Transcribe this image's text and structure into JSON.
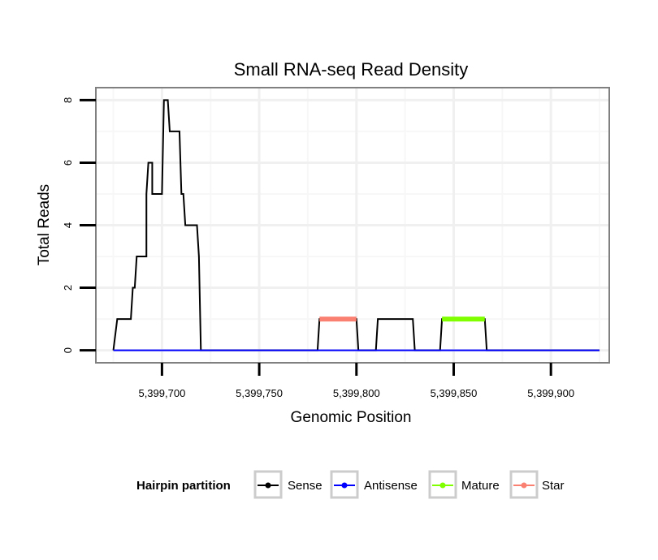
{
  "chart_data": {
    "type": "line",
    "title": "Small RNA-seq Read Density",
    "xlabel": "Genomic Position",
    "ylabel": "Total Reads",
    "xlim": [
      5399666,
      5399930
    ],
    "ylim": [
      -0.4,
      8.4
    ],
    "x_ticks": [
      5399700,
      5399750,
      5399800,
      5399850,
      5399900
    ],
    "x_tick_labels": [
      "5,399,700",
      "5,399,750",
      "5,399,800",
      "5,399,850",
      "5,399,900"
    ],
    "y_ticks": [
      0,
      2,
      4,
      6,
      8
    ],
    "y_tick_labels": [
      "0",
      "2",
      "4",
      "6",
      "8"
    ],
    "grid": true,
    "series": [
      {
        "name": "Sense",
        "color": "#000000",
        "line_width": 2,
        "points": [
          [
            5399675,
            0
          ],
          [
            5399677,
            1
          ],
          [
            5399684,
            1
          ],
          [
            5399684,
            1
          ],
          [
            5399685,
            2
          ],
          [
            5399686,
            2
          ],
          [
            5399687,
            3
          ],
          [
            5399692,
            3
          ],
          [
            5399692,
            5
          ],
          [
            5399693,
            6
          ],
          [
            5399695,
            6
          ],
          [
            5399695,
            5
          ],
          [
            5399700,
            5
          ],
          [
            5399701,
            8
          ],
          [
            5399703,
            8
          ],
          [
            5399704,
            7
          ],
          [
            5399709,
            7
          ],
          [
            5399710,
            5
          ],
          [
            5399711,
            5
          ],
          [
            5399712,
            4
          ],
          [
            5399718,
            4
          ],
          [
            5399719,
            3
          ],
          [
            5399720,
            0
          ],
          [
            5399780,
            0
          ],
          [
            5399781,
            1
          ],
          [
            5399800,
            1
          ],
          [
            5399801,
            0
          ],
          [
            5399810,
            0
          ],
          [
            5399811,
            1
          ],
          [
            5399829,
            1
          ],
          [
            5399830,
            0
          ],
          [
            5399843,
            0
          ],
          [
            5399844,
            1
          ],
          [
            5399866,
            1
          ],
          [
            5399867,
            0
          ],
          [
            5399925,
            0
          ]
        ]
      },
      {
        "name": "Antisense",
        "color": "#0000ff",
        "line_width": 2,
        "points": [
          [
            5399675,
            0
          ],
          [
            5399925,
            0
          ]
        ]
      },
      {
        "name": "Mature",
        "color": "#7fff00",
        "line_width": 6,
        "points": [
          [
            5399844,
            1
          ],
          [
            5399866,
            1
          ]
        ]
      },
      {
        "name": "Star",
        "color": "#fa8072",
        "line_width": 6,
        "points": [
          [
            5399781,
            1
          ],
          [
            5399800,
            1
          ]
        ]
      }
    ],
    "legend": {
      "title": "Hairpin partition",
      "position": "bottom",
      "entries": [
        "Sense",
        "Antisense",
        "Mature",
        "Star"
      ]
    }
  }
}
